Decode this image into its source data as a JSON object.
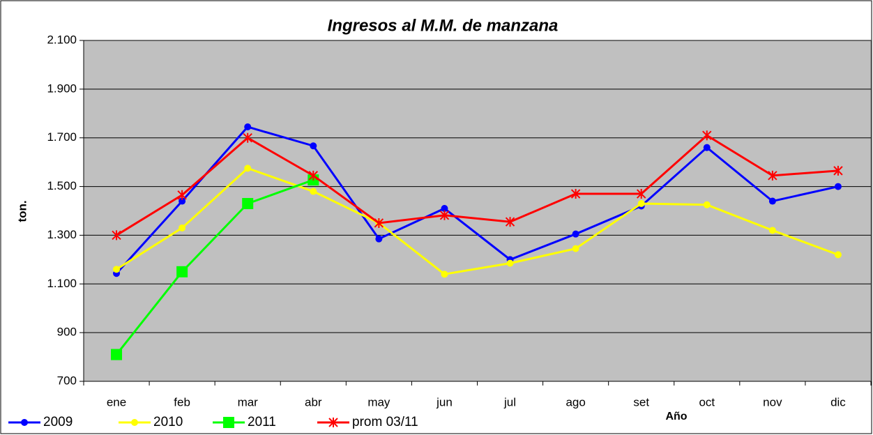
{
  "chart_data": {
    "type": "line",
    "title": "Ingresos al M.M. de manzana",
    "x_label": "Año",
    "y_label": "ton.",
    "categories": [
      "ene",
      "feb",
      "mar",
      "abr",
      "may",
      "jun",
      "jul",
      "ago",
      "set",
      "oct",
      "nov",
      "dic"
    ],
    "ylim": [
      700,
      2100
    ],
    "yticks": [
      {
        "value": 700,
        "label": "700"
      },
      {
        "value": 900,
        "label": "900"
      },
      {
        "value": 1100,
        "label": "1.100"
      },
      {
        "value": 1300,
        "label": "1.300"
      },
      {
        "value": 1500,
        "label": "1.500"
      },
      {
        "value": 1700,
        "label": "1.700"
      },
      {
        "value": 1900,
        "label": "1.900"
      },
      {
        "value": 2100,
        "label": "2.100"
      }
    ],
    "grid": true,
    "legend": "bottom-left",
    "series": [
      {
        "name": "2009",
        "color": "#0000ff",
        "marker": "circle",
        "values": [
          1143,
          1440,
          1745,
          1667,
          1285,
          1410,
          1200,
          1305,
          1420,
          1660,
          1440,
          1500
        ]
      },
      {
        "name": "2010",
        "color": "#ffff00",
        "marker": "circle",
        "values": [
          1160,
          1330,
          1575,
          1480,
          1350,
          1140,
          1185,
          1245,
          1430,
          1425,
          1320,
          1220
        ]
      },
      {
        "name": "2011",
        "color": "#00ff00",
        "marker": "square",
        "values": [
          810,
          1150,
          1430,
          1527,
          null,
          null,
          null,
          null,
          null,
          null,
          null,
          null
        ]
      },
      {
        "name": "prom 03/11",
        "color": "#ff0000",
        "marker": "star",
        "values": [
          1300,
          1465,
          1700,
          1545,
          1350,
          1382,
          1355,
          1470,
          1470,
          1710,
          1545,
          1565
        ]
      }
    ]
  }
}
